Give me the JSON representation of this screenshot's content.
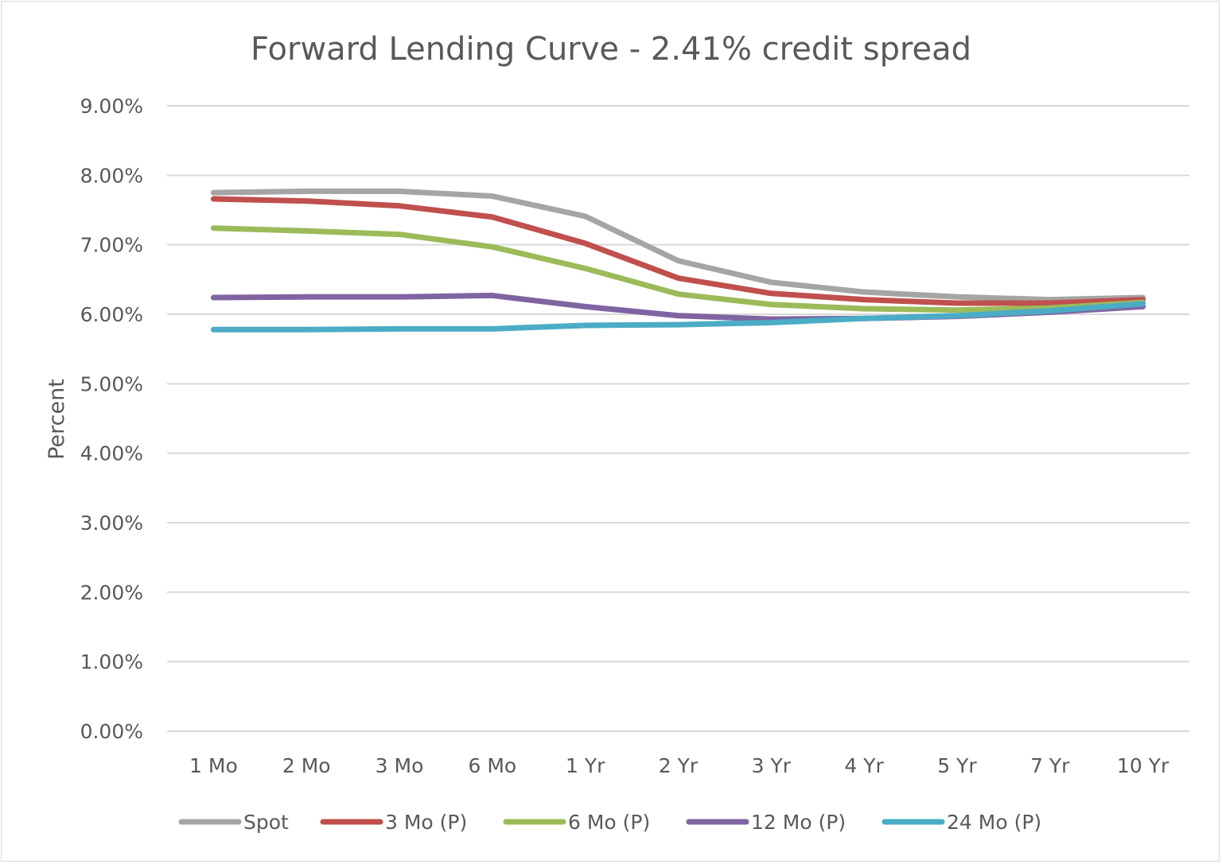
{
  "chart_data": {
    "type": "line",
    "title": "Forward Lending Curve - 2.41% credit spread",
    "xlabel": "",
    "ylabel": "Percent",
    "ylim": [
      0,
      9
    ],
    "ytick_labels": [
      "0.00%",
      "1.00%",
      "2.00%",
      "3.00%",
      "4.00%",
      "5.00%",
      "6.00%",
      "7.00%",
      "8.00%",
      "9.00%"
    ],
    "grid": true,
    "legend_position": "bottom",
    "categories": [
      "1 Mo",
      "2 Mo",
      "3 Mo",
      "6 Mo",
      "1 Yr",
      "2 Yr",
      "3 Yr",
      "4 Yr",
      "5 Yr",
      "7 Yr",
      "10 Yr"
    ],
    "series": [
      {
        "name": "Spot",
        "color": "#a5a5a5",
        "values": [
          7.75,
          7.77,
          7.77,
          7.7,
          7.41,
          6.77,
          6.46,
          6.32,
          6.25,
          6.21,
          6.24
        ]
      },
      {
        "name": "3 Mo (P)",
        "color": "#c0504d",
        "values": [
          7.66,
          7.63,
          7.56,
          7.4,
          7.02,
          6.52,
          6.3,
          6.21,
          6.16,
          6.16,
          6.21
        ]
      },
      {
        "name": "6 Mo (P)",
        "color": "#9bbb59",
        "values": [
          7.24,
          7.2,
          7.15,
          6.97,
          6.66,
          6.29,
          6.14,
          6.08,
          6.06,
          6.09,
          6.17
        ]
      },
      {
        "name": "12 Mo (P)",
        "color": "#8064a2",
        "values": [
          6.24,
          6.25,
          6.25,
          6.27,
          6.11,
          5.98,
          5.93,
          5.94,
          5.97,
          6.03,
          6.11
        ]
      },
      {
        "name": "24 Mo (P)",
        "color": "#4bacc6",
        "values": [
          5.78,
          5.78,
          5.79,
          5.79,
          5.84,
          5.85,
          5.88,
          5.94,
          5.98,
          6.05,
          6.15
        ]
      }
    ]
  }
}
